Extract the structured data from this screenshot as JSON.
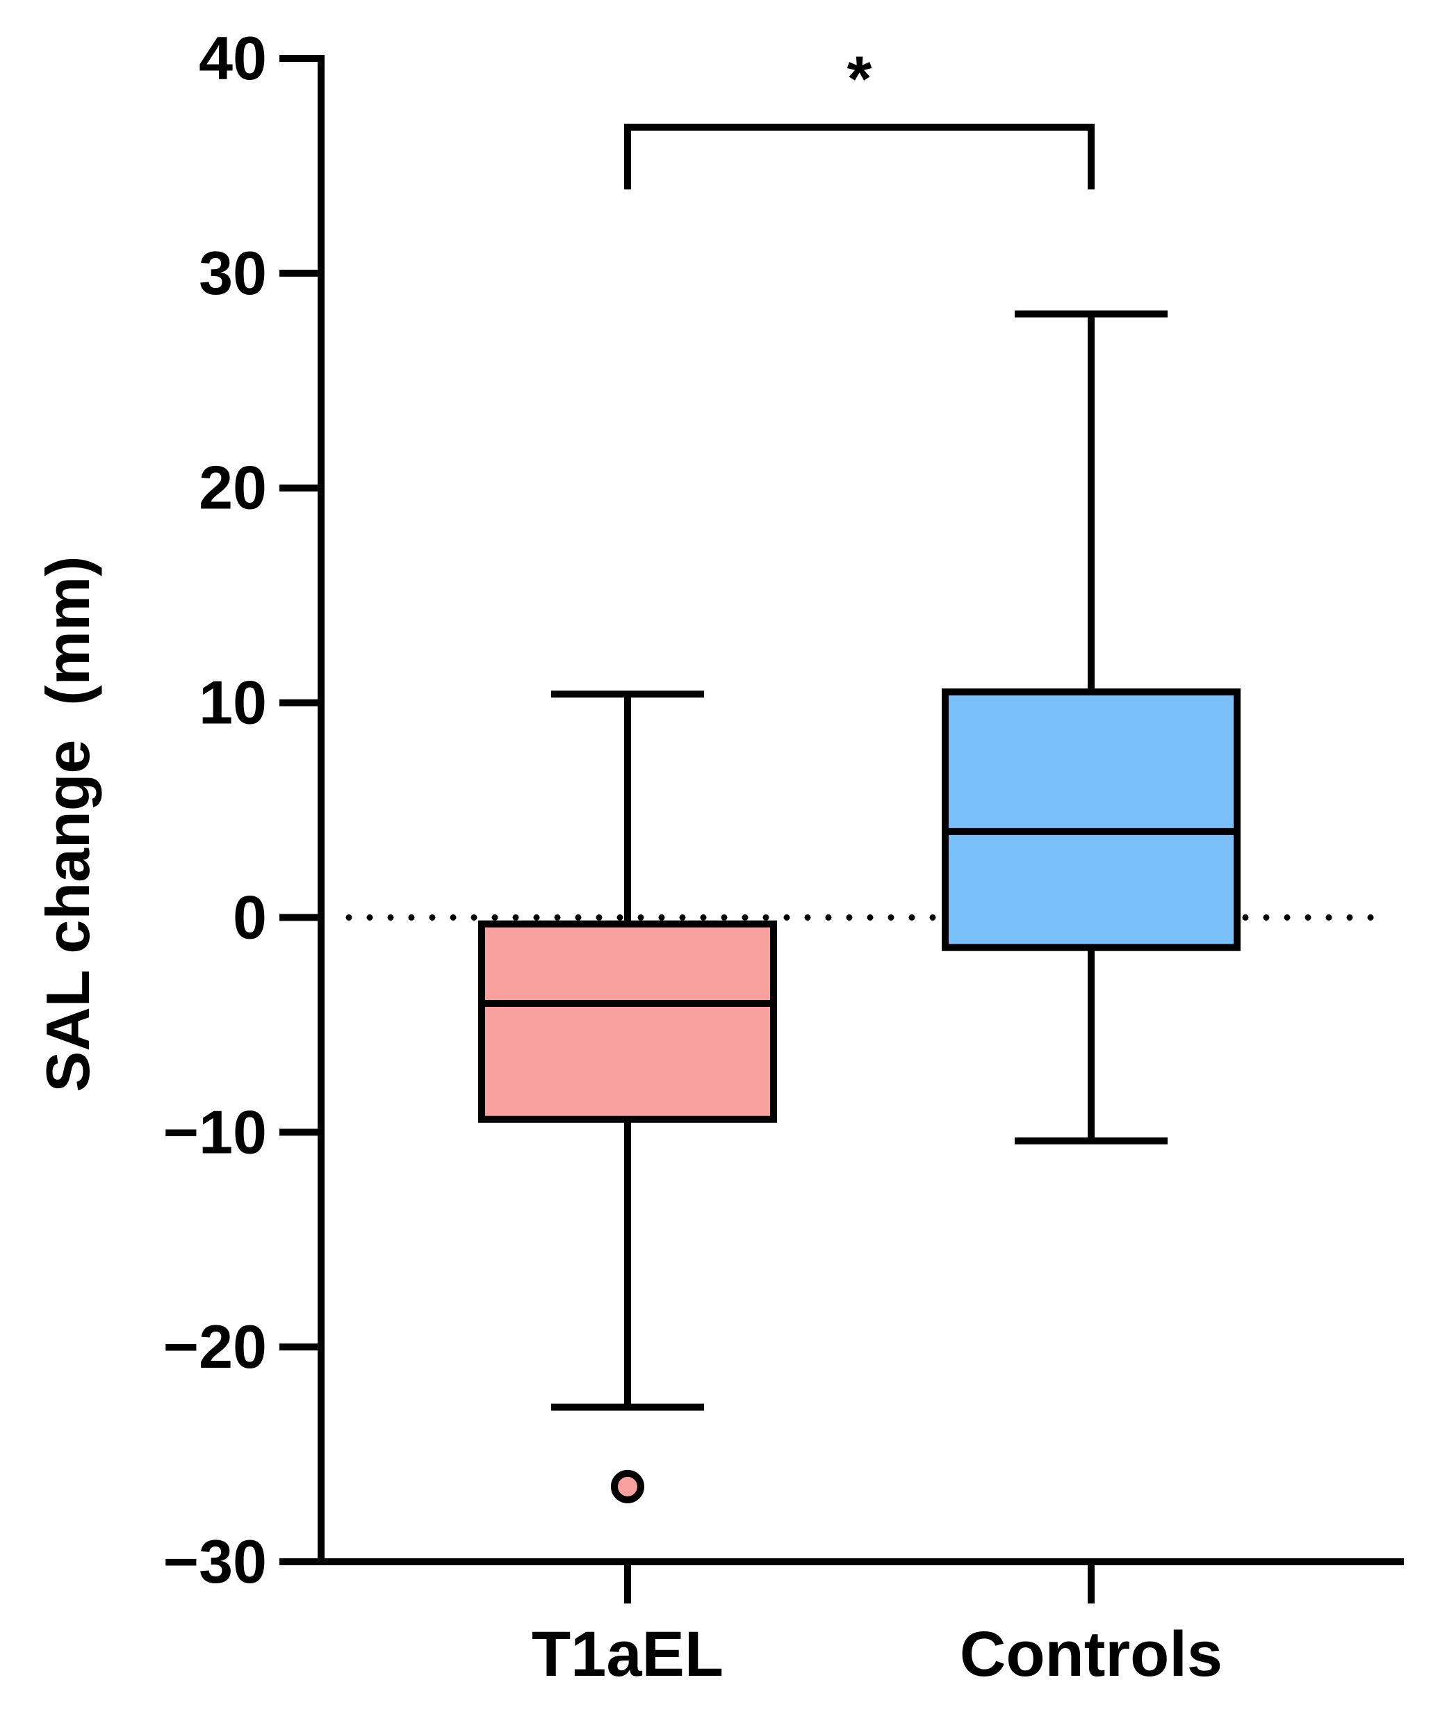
{
  "chart_data": {
    "type": "box",
    "ylabel": "SAL change  (mm)",
    "ylim": [
      -30,
      40
    ],
    "yticks": [
      {
        "value": 40,
        "label": "40"
      },
      {
        "value": 30,
        "label": "30"
      },
      {
        "value": 20,
        "label": "20"
      },
      {
        "value": 10,
        "label": "10"
      },
      {
        "value": 0,
        "label": "0"
      },
      {
        "value": -10,
        "label": "−10"
      },
      {
        "value": -20,
        "label": "−20"
      },
      {
        "value": -30,
        "label": "−30"
      }
    ],
    "categories": [
      "T1aEL",
      "Controls"
    ],
    "boxes": [
      {
        "name": "T1aEL",
        "whisker_low": -22.8,
        "q1": -9.4,
        "median": -4.0,
        "q3": -0.3,
        "whisker_high": 10.4,
        "outliers": [
          -26.5
        ],
        "color": "#f9a19e"
      },
      {
        "name": "Controls",
        "whisker_low": -10.4,
        "q1": -1.4,
        "median": 4.0,
        "q3": 10.5,
        "whisker_high": 28.1,
        "outliers": [],
        "color": "#79bff8"
      }
    ],
    "reference_line": {
      "value": 0,
      "style": "dotted"
    },
    "significance": {
      "between": [
        "T1aEL",
        "Controls"
      ],
      "label": "*",
      "y": 36.8,
      "drop_to": 33.9
    },
    "grid": false,
    "legend": "none"
  }
}
